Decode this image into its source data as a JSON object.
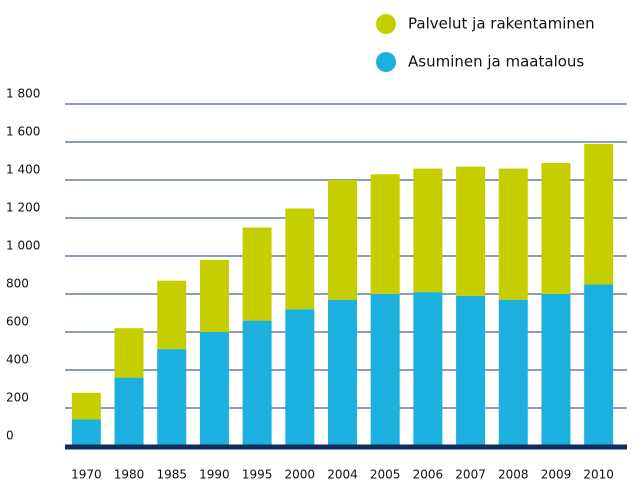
{
  "chart_data": {
    "type": "stacked_bar",
    "categories": [
      "1970",
      "1980",
      "1985",
      "1990",
      "1995",
      "2000",
      "2004",
      "2005",
      "2006",
      "2007",
      "2008",
      "2009",
      "2010"
    ],
    "series": [
      {
        "name": "Asuminen ja maatalous",
        "color": "#1bb0dd",
        "values": [
          140,
          360,
          510,
          600,
          660,
          720,
          770,
          800,
          810,
          790,
          770,
          800,
          850
        ]
      },
      {
        "name": "Palvelut ja rakentaminen",
        "color": "#c5cf00",
        "values": [
          140,
          260,
          360,
          380,
          490,
          530,
          630,
          630,
          650,
          680,
          690,
          690,
          740
        ]
      }
    ],
    "ylim": [
      0,
      1800
    ],
    "yticks": [
      0,
      200,
      400,
      600,
      800,
      {
        "value": 1000,
        "label": "1 000"
      },
      {
        "value": 1200,
        "label": "1 200"
      },
      {
        "value": 1400,
        "label": "1 400"
      },
      {
        "value": 1600,
        "label": "1 600"
      },
      {
        "value": 1800,
        "label": "1 800"
      }
    ],
    "grid": true,
    "legend": "top-right"
  }
}
